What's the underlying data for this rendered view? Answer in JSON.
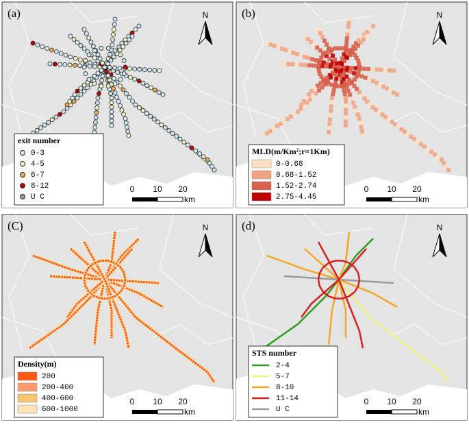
{
  "panels": [
    {
      "label": "(a)",
      "style": "points",
      "swatch": "circle",
      "legend_title": "exit number",
      "legend": [
        {
          "label": "0-3",
          "color": "#cfe8ef"
        },
        {
          "label": "4-5",
          "color": "#f2f2c4"
        },
        {
          "label": "6-7",
          "color": "#f0a84f"
        },
        {
          "label": "8-12",
          "color": "#c00000"
        },
        {
          "label": "U C",
          "color": "#9a9a9a"
        }
      ],
      "scale_ticks": [
        0,
        10,
        20
      ],
      "scale_unit": "km",
      "north": "N"
    },
    {
      "label": "(b)",
      "style": "cells",
      "swatch": "rect",
      "legend_title": "MLD(m/Km²;r=1Km)",
      "legend": [
        {
          "label": "0-0.68",
          "color": "#fde0c5"
        },
        {
          "label": "0.68-1.52",
          "color": "#f0a484"
        },
        {
          "label": "1.52-2.74",
          "color": "#d9604a"
        },
        {
          "label": "2.75-4.45",
          "color": "#c00000"
        }
      ],
      "scale_ticks": [
        0,
        10,
        20
      ],
      "scale_unit": "km",
      "north": "N"
    },
    {
      "label": "(C)",
      "style": "band",
      "swatch": "rect",
      "legend_title": "Density(m)",
      "legend": [
        {
          "label": "200",
          "color": "#ff5a10"
        },
        {
          "label": "200-400",
          "color": "#fa9a70"
        },
        {
          "label": "400-600",
          "color": "#f9c470"
        },
        {
          "label": "600-1000",
          "color": "#fde3b5"
        }
      ],
      "scale_ticks": [
        0,
        10,
        20
      ],
      "scale_unit": "km",
      "north": "N"
    },
    {
      "label": "(d)",
      "style": "lines",
      "swatch": "line",
      "legend_title": "STS number",
      "legend": [
        {
          "label": "2-4",
          "color": "#2e9c1f"
        },
        {
          "label": "5-7",
          "color": "#f0f07a"
        },
        {
          "label": "8-10",
          "color": "#f5a623"
        },
        {
          "label": "11-14",
          "color": "#d42020"
        },
        {
          "label": "U C",
          "color": "#9a9a9a"
        }
      ],
      "scale_ticks": [
        0,
        10,
        20
      ],
      "scale_unit": "km",
      "north": "N"
    }
  ]
}
